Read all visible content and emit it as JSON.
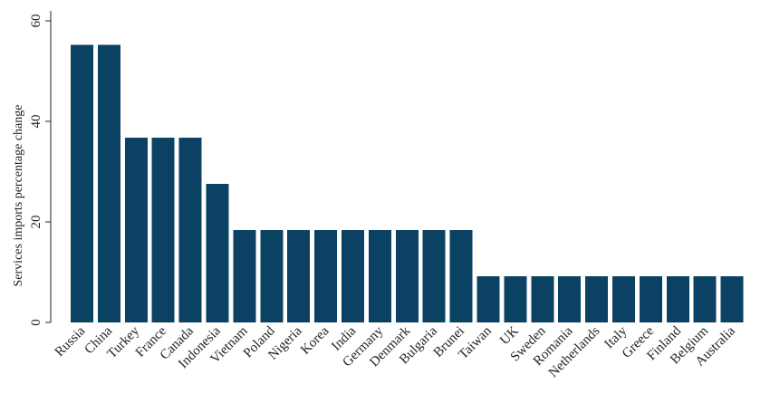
{
  "chart_data": {
    "type": "bar",
    "title": "",
    "xlabel": "",
    "ylabel": "Services imports percentage change",
    "categories": [
      "Russia",
      "China",
      "Turkey",
      "France",
      "Canada",
      "Indonesia",
      "Vietnam",
      "Poland",
      "Nigeria",
      "Korea",
      "India",
      "Germany",
      "Denmark",
      "Bulgaria",
      "Brunei",
      "Taiwan",
      "UK",
      "Sweden",
      "Romania",
      "Netherlands",
      "Italy",
      "Greece",
      "Finland",
      "Belgium",
      "Australia"
    ],
    "values": [
      55.2,
      55.2,
      36.8,
      36.8,
      36.8,
      27.6,
      18.4,
      18.4,
      18.4,
      18.4,
      18.4,
      18.4,
      18.4,
      18.4,
      18.4,
      9.2,
      9.2,
      9.2,
      9.2,
      9.2,
      9.2,
      9.2,
      9.2,
      9.2,
      9.2
    ],
    "ylim": [
      0,
      60
    ],
    "yticks": [
      "0",
      "20",
      "40",
      "60"
    ],
    "bar_color": "#0b4263",
    "grid": false,
    "legend": "none"
  }
}
